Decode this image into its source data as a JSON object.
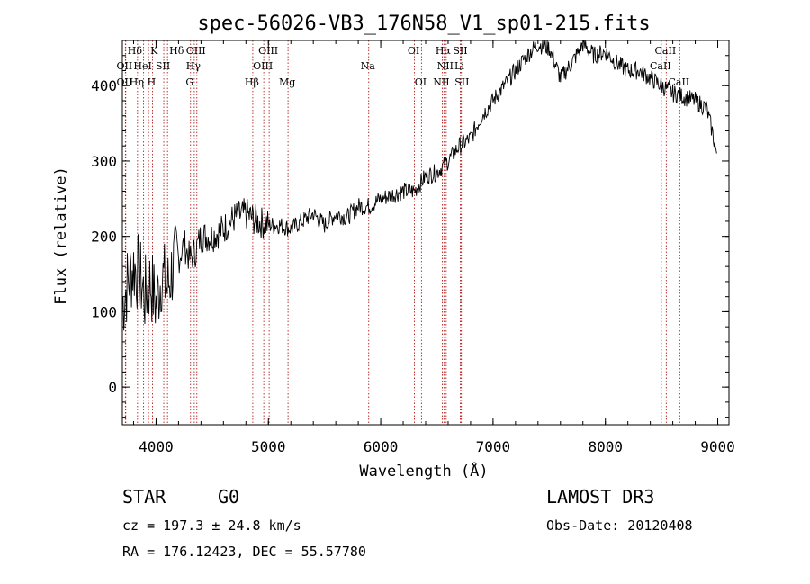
{
  "chart_data": {
    "type": "line",
    "title": "spec-56026-VB3_176N58_V1_sp01-215.fits",
    "xlabel": "Wavelength (Å)",
    "ylabel": "Flux (relative)",
    "xlim": [
      3700,
      9100
    ],
    "ylim": [
      -50,
      460
    ],
    "xticks": [
      4000,
      5000,
      6000,
      7000,
      8000,
      9000
    ],
    "yticks": [
      0,
      100,
      200,
      300,
      400
    ],
    "series": [
      {
        "name": "flux",
        "x": [
          3700,
          3750,
          3800,
          3850,
          3900,
          3950,
          4000,
          4050,
          4100,
          4150,
          4200,
          4250,
          4300,
          4350,
          4400,
          4500,
          4600,
          4700,
          4800,
          4900,
          5000,
          5100,
          5200,
          5300,
          5400,
          5500,
          5600,
          5700,
          5800,
          5900,
          6000,
          6100,
          6200,
          6300,
          6400,
          6500,
          6600,
          6700,
          6800,
          6900,
          7000,
          7100,
          7200,
          7300,
          7400,
          7500,
          7600,
          7700,
          7800,
          7900,
          8000,
          8100,
          8200,
          8300,
          8400,
          8500,
          8600,
          8700,
          8800,
          8900,
          8950,
          8990
        ],
        "y": [
          110,
          140,
          160,
          150,
          120,
          140,
          110,
          150,
          130,
          160,
          170,
          190,
          170,
          180,
          200,
          200,
          210,
          225,
          230,
          220,
          215,
          215,
          210,
          220,
          230,
          215,
          230,
          225,
          240,
          240,
          250,
          255,
          260,
          260,
          280,
          285,
          300,
          320,
          330,
          360,
          380,
          400,
          420,
          440,
          455,
          450,
          410,
          430,
          455,
          440,
          445,
          430,
          420,
          420,
          410,
          400,
          390,
          385,
          380,
          370,
          340,
          310
        ]
      }
    ],
    "lines": [
      {
        "label": "Hδ",
        "x": 3730,
        "row": 0,
        "side": "right"
      },
      {
        "label": "K",
        "x": 3933,
        "row": 0,
        "side": "right"
      },
      {
        "label": "Hδ",
        "x": 4102,
        "row": 0,
        "side": "right"
      },
      {
        "label": "OII",
        "x": 3727,
        "row": 1,
        "side": "left"
      },
      {
        "label": "HeI",
        "x": 3889,
        "row": 1,
        "side": "left"
      },
      {
        "label": "SII",
        "x": 4069,
        "row": 1,
        "side": "left"
      },
      {
        "label": "OII",
        "x": 3727,
        "row": 2,
        "side": "left"
      },
      {
        "label": "Hη",
        "x": 3835,
        "row": 2,
        "side": "left"
      },
      {
        "label": "H",
        "x": 3968,
        "row": 2,
        "side": "left"
      },
      {
        "label": "OIII",
        "x": 4363,
        "row": 0,
        "side": "left"
      },
      {
        "label": "Hγ",
        "x": 4340,
        "row": 1,
        "side": "left"
      },
      {
        "label": "G",
        "x": 4307,
        "row": 2,
        "side": "left"
      },
      {
        "label": "OIII",
        "x": 5007,
        "row": 0,
        "side": "left"
      },
      {
        "label": "OIII",
        "x": 4959,
        "row": 1,
        "side": "left"
      },
      {
        "label": "Hβ",
        "x": 4861,
        "row": 2,
        "side": "left"
      },
      {
        "label": "Mg",
        "x": 5175,
        "row": 2,
        "side": "left"
      },
      {
        "label": "Na",
        "x": 5893,
        "row": 1,
        "side": "left"
      },
      {
        "label": "OI",
        "x": 6300,
        "row": 0,
        "side": "left"
      },
      {
        "label": "OI",
        "x": 6363,
        "row": 2,
        "side": "left"
      },
      {
        "label": "Hα",
        "x": 6563,
        "row": 0,
        "side": "left"
      },
      {
        "label": "SII",
        "x": 6716,
        "row": 0,
        "side": "left"
      },
      {
        "label": "NII",
        "x": 6583,
        "row": 1,
        "side": "left"
      },
      {
        "label": "Li",
        "x": 6708,
        "row": 1,
        "side": "left"
      },
      {
        "label": "NII",
        "x": 6548,
        "row": 2,
        "side": "left"
      },
      {
        "label": "SII",
        "x": 6731,
        "row": 2,
        "side": "left"
      },
      {
        "label": "CaII",
        "x": 8542,
        "row": 0,
        "side": "left"
      },
      {
        "label": "CaII",
        "x": 8498,
        "row": 1,
        "side": "left"
      },
      {
        "label": "CaII",
        "x": 8662,
        "row": 2,
        "side": "left"
      }
    ]
  },
  "info": {
    "class": "STAR",
    "subclass": "G0",
    "survey": "LAMOST DR3",
    "cz": "cz = 197.3 ± 24.8 km/s",
    "obsdate": "Obs-Date: 20120408",
    "radec": "RA = 176.12423, DEC =  55.57780"
  }
}
